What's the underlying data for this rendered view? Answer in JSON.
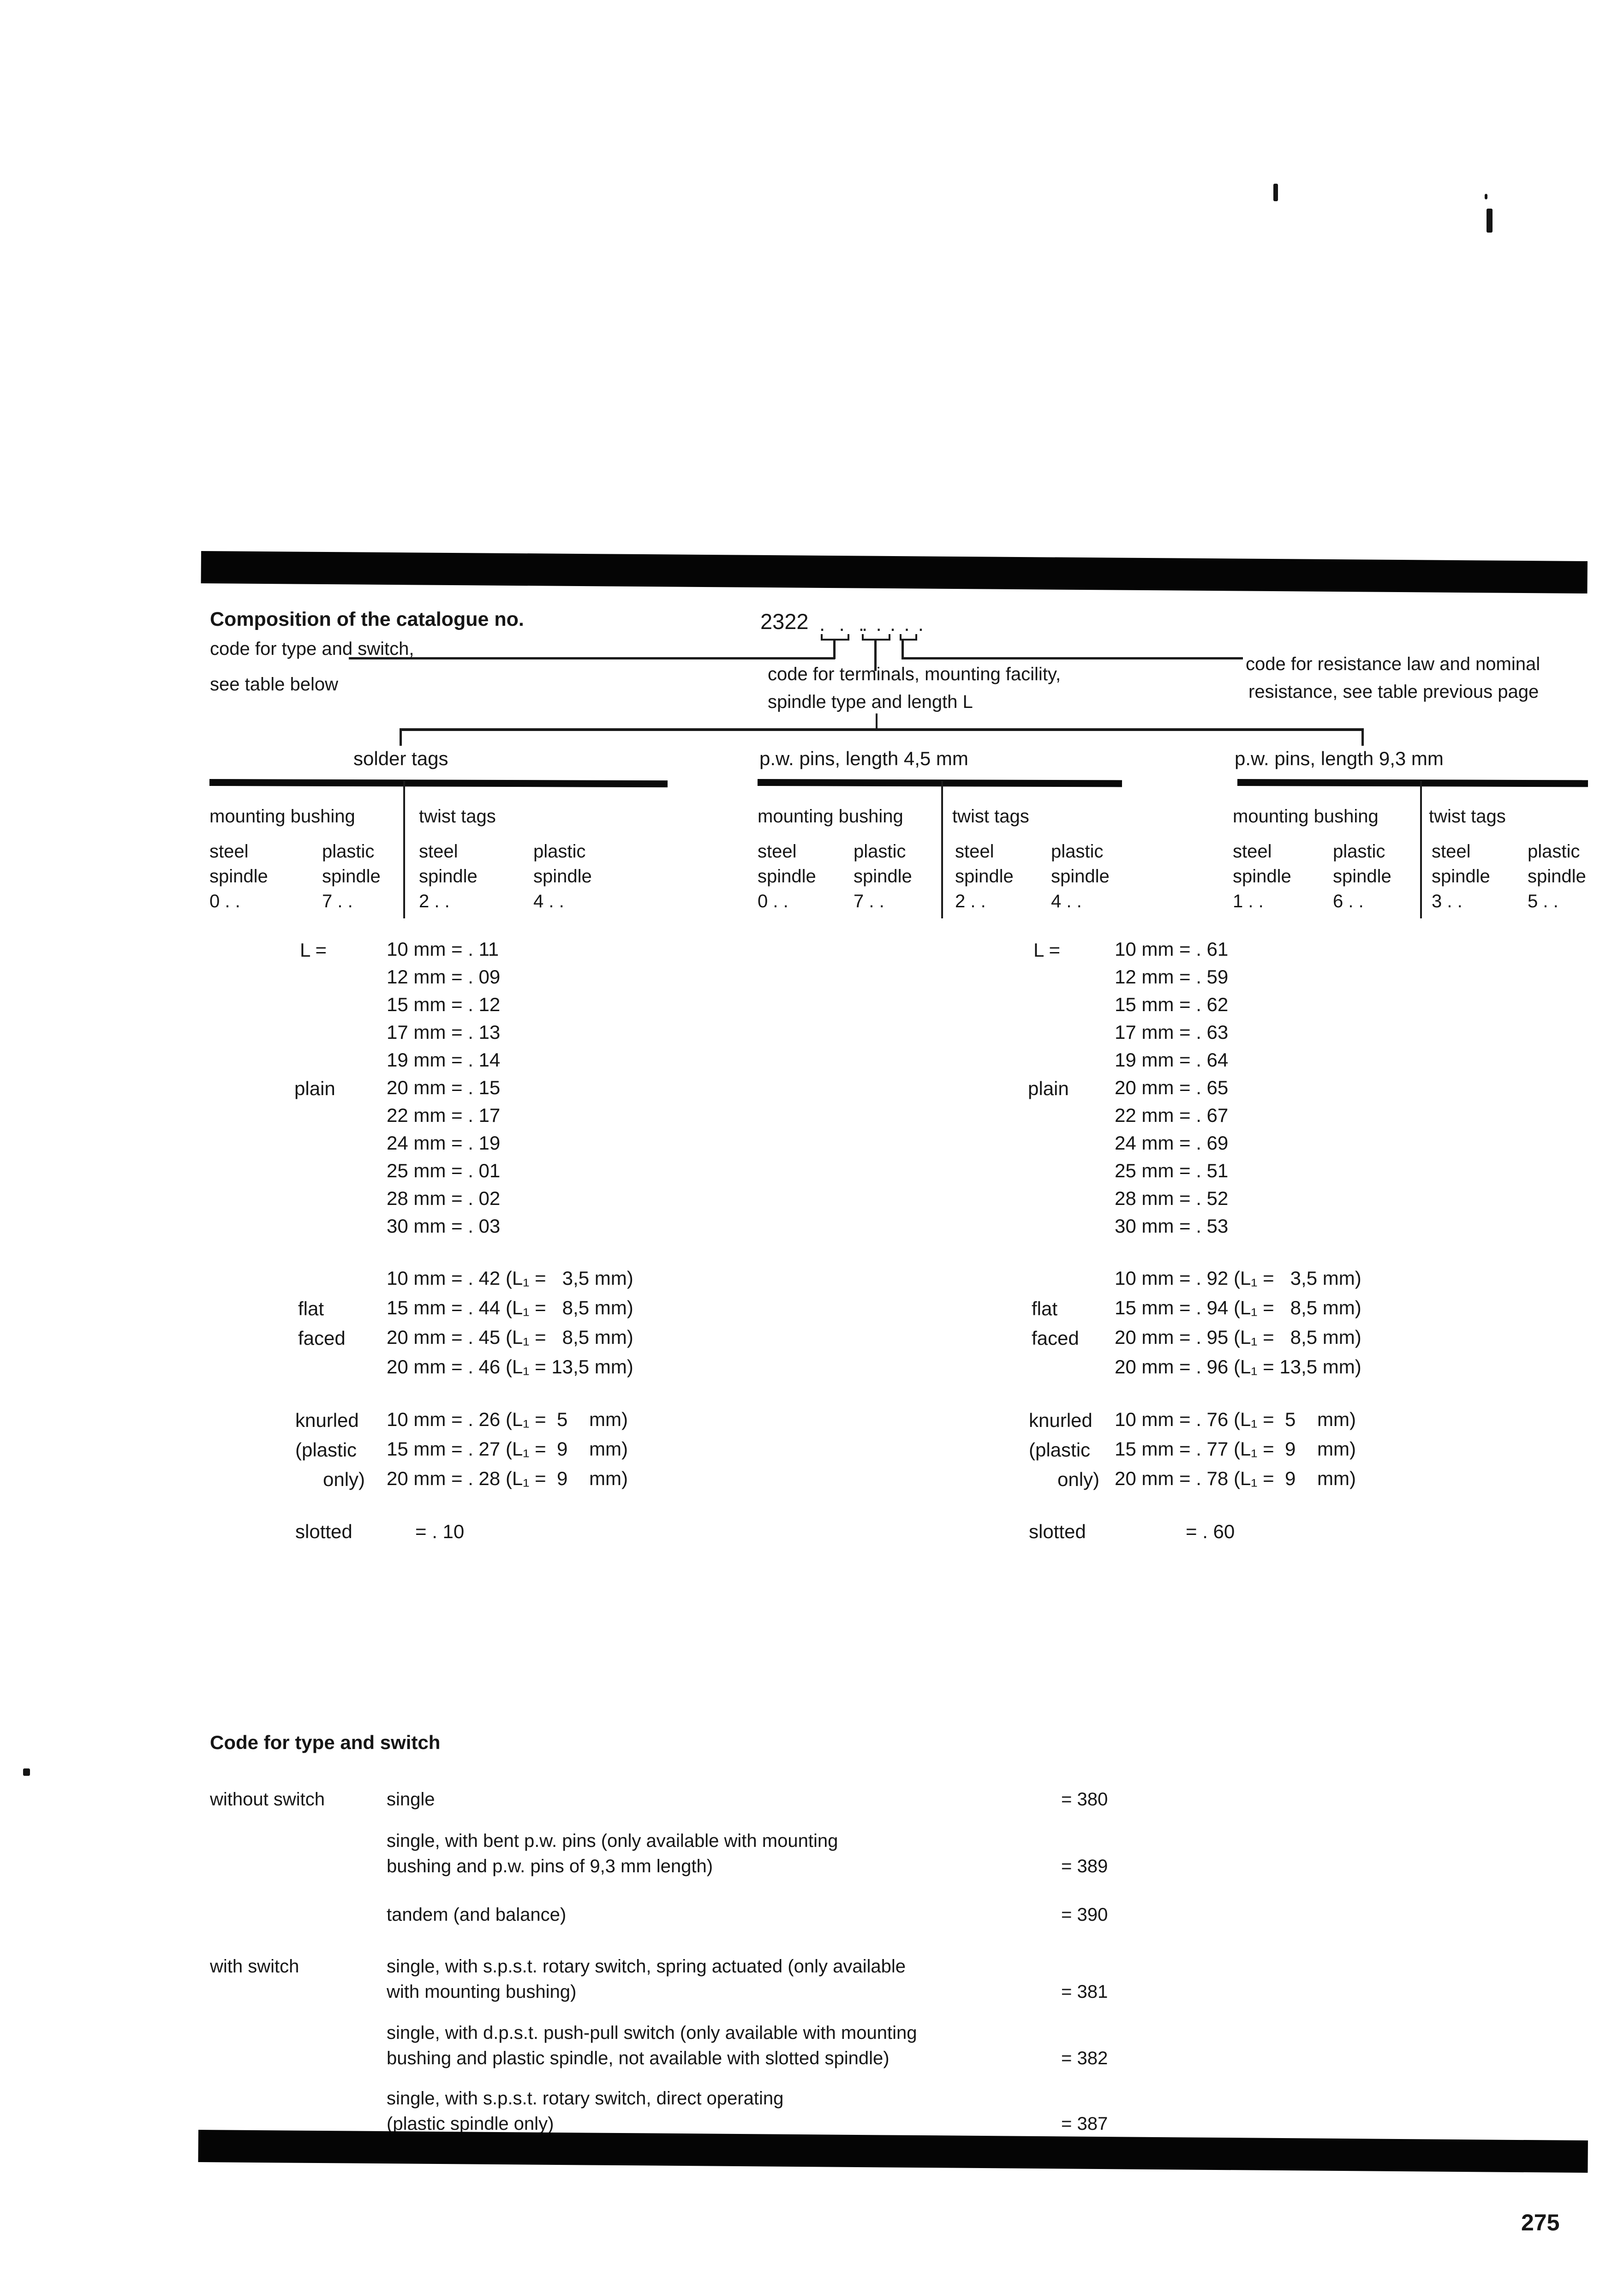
{
  "page": {
    "number": "275",
    "ink": "#161616",
    "paper": "#ffffff"
  },
  "header": {
    "title": "Composition of the catalogue no.",
    "left_label_line1": "code for type and switch,",
    "left_label_line2": "see table below",
    "catalogue_prefix": "2322",
    "dots_group1": ". . .",
    "dots_group2": ". . . . .",
    "terminals_line1": "code for terminals, mounting facility,",
    "terminals_line2": "spindle type and length L",
    "resistance_line1": "code for resistance law and nominal",
    "resistance_line2": "resistance, see table previous page"
  },
  "terminal_groups": [
    {
      "title": "solder tags",
      "bushing_label": "mounting bushing",
      "twist_label": "twist tags",
      "columns": [
        {
          "material": "steel",
          "part": "spindle",
          "code": "0 . ."
        },
        {
          "material": "plastic",
          "part": "spindle",
          "code": "7 . ."
        },
        {
          "material": "steel",
          "part": "spindle",
          "code": "2 . ."
        },
        {
          "material": "plastic",
          "part": "spindle",
          "code": "4 . ."
        }
      ]
    },
    {
      "title": "p.w. pins, length 4,5 mm",
      "bushing_label": "mounting bushing",
      "twist_label": "twist tags",
      "columns": [
        {
          "material": "steel",
          "part": "spindle",
          "code": "0 . ."
        },
        {
          "material": "plastic",
          "part": "spindle",
          "code": "7 . ."
        },
        {
          "material": "steel",
          "part": "spindle",
          "code": "2 . ."
        },
        {
          "material": "plastic",
          "part": "spindle",
          "code": "4 . ."
        }
      ]
    },
    {
      "title": "p.w. pins, length 9,3 mm",
      "bushing_label": "mounting bushing",
      "twist_label": "twist tags",
      "columns": [
        {
          "material": "steel",
          "part": "spindle",
          "code": "1 . ."
        },
        {
          "material": "plastic",
          "part": "spindle",
          "code": "6 . ."
        },
        {
          "material": "steel",
          "part": "spindle",
          "code": "3 . ."
        },
        {
          "material": "plastic",
          "part": "spindle",
          "code": "5 . ."
        }
      ]
    }
  ],
  "length_codes": {
    "left": {
      "l_label": "L =",
      "plain_label": "plain",
      "plain_rows": [
        "10 mm = . 11",
        "12 mm = . 09",
        "15 mm = . 12",
        "17 mm = . 13",
        "19 mm = . 14",
        "20 mm = . 15",
        "22 mm = . 17",
        "24 mm = . 19",
        "25 mm = . 01",
        "28 mm = . 02",
        "30 mm = . 03"
      ],
      "flat_label_1": "flat",
      "flat_label_2": "faced",
      "flat_rows": [
        "10 mm = . 42 (L₁ =   3,5 mm)",
        "15 mm = . 44 (L₁ =   8,5 mm)",
        "20 mm = . 45 (L₁ =   8,5 mm)",
        "20 mm = . 46 (L₁ = 13,5 mm)"
      ],
      "knurled_label_1": "knurled",
      "knurled_label_2": "(plastic",
      "knurled_label_3": "only)",
      "knurled_rows": [
        "10 mm = . 26 (L₁ =  5    mm)",
        "15 mm = . 27 (L₁ =  9    mm)",
        "20 mm = . 28 (L₁ =  9    mm)"
      ],
      "slotted_label": "slotted",
      "slotted_value": "= . 10"
    },
    "right": {
      "l_label": "L =",
      "plain_label": "plain",
      "plain_rows": [
        "10 mm = . 61",
        "12 mm = . 59",
        "15 mm = . 62",
        "17 mm = . 63",
        "19 mm = . 64",
        "20 mm = . 65",
        "22 mm = . 67",
        "24 mm = . 69",
        "25 mm = . 51",
        "28 mm = . 52",
        "30 mm = . 53"
      ],
      "flat_label_1": "flat",
      "flat_label_2": "faced",
      "flat_rows": [
        "10 mm = . 92 (L₁ =   3,5 mm)",
        "15 mm = . 94 (L₁ =   8,5 mm)",
        "20 mm = . 95 (L₁ =   8,5 mm)",
        "20 mm = . 96 (L₁ = 13,5 mm)"
      ],
      "knurled_label_1": "knurled",
      "knurled_label_2": "(plastic",
      "knurled_label_3": "only)",
      "knurled_rows": [
        "10 mm = . 76 (L₁ =  5    mm)",
        "15 mm = . 77 (L₁ =  9    mm)",
        "20 mm = . 78 (L₁ =  9    mm)"
      ],
      "slotted_label": "slotted",
      "slotted_value": "= . 60"
    }
  },
  "type_switch": {
    "heading": "Code for type and switch",
    "without_label": "without switch",
    "with_label": "with switch",
    "items": [
      {
        "line1": "single",
        "value": "= 380"
      },
      {
        "line1": "single, with bent p.w. pins (only available with mounting",
        "line2": "bushing and p.w. pins of 9,3 mm length)",
        "value": "= 389"
      },
      {
        "line1": "tandem (and balance)",
        "value": "= 390"
      },
      {
        "line1": "single, with s.p.s.t. rotary switch, spring actuated (only available",
        "line2": "with mounting bushing)",
        "value": "= 381"
      },
      {
        "line1": "single, with d.p.s.t. push-pull switch (only available with mounting",
        "line2": "bushing and plastic spindle, not available with slotted spindle)",
        "value": "= 382"
      },
      {
        "line1": "single, with s.p.s.t. rotary switch, direct operating",
        "line2": "(plastic spindle only)",
        "value": "= 387"
      }
    ]
  }
}
